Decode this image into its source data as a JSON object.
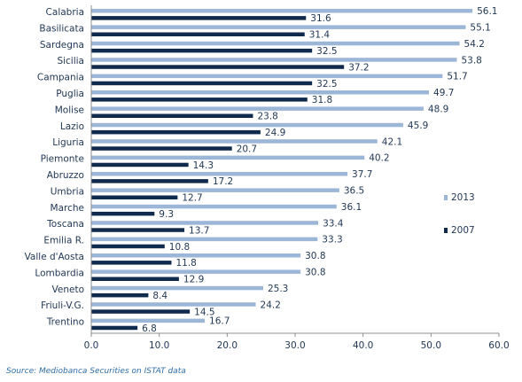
{
  "chart_data": {
    "type": "bar",
    "orientation": "horizontal",
    "categories": [
      "Calabria",
      "Basilicata",
      "Sardegna",
      "Sicilia",
      "Campania",
      "Puglia",
      "Molise",
      "Lazio",
      "Liguria",
      "Piemonte",
      "Abruzzo",
      "Umbria",
      "Marche",
      "Toscana",
      "Emilia R.",
      "Valle d'Aosta",
      "Lombardia",
      "Veneto",
      "Friuli-V.G.",
      "Trentino"
    ],
    "series": [
      {
        "name": "2013",
        "color": "#9cb6d8",
        "values": [
          56.1,
          55.1,
          54.2,
          53.8,
          51.7,
          49.7,
          48.9,
          45.9,
          42.1,
          40.2,
          37.7,
          36.5,
          36.1,
          33.4,
          33.3,
          30.8,
          30.8,
          25.3,
          24.2,
          16.7
        ],
        "labels": [
          "56.1",
          "55.1",
          "54.2",
          "53.8",
          "51.7",
          "49.7",
          "48.9",
          "45.9",
          "42.1",
          "40.2",
          "37.7",
          "36.5",
          "36.1",
          "33.4",
          "33.3",
          "30.8",
          "30.8",
          "25.3",
          "24.2",
          "16.7"
        ]
      },
      {
        "name": "2007",
        "color": "#0f2a4d",
        "values": [
          31.6,
          31.4,
          32.5,
          37.2,
          32.5,
          31.8,
          23.8,
          24.9,
          20.7,
          14.3,
          17.2,
          12.7,
          9.3,
          13.7,
          10.8,
          11.8,
          12.9,
          8.4,
          14.5,
          6.8
        ],
        "labels": [
          "31.6",
          "31.4",
          "32.5",
          "37.2",
          "32.5",
          "31.8",
          "23.8",
          "24.9",
          "20.7",
          "14.3",
          "17.2",
          "12.7",
          "9.3",
          "13.7",
          "10.8",
          "11.8",
          "12.9",
          "8.4",
          "14.5",
          "6.8"
        ]
      }
    ],
    "xlim": [
      0,
      60
    ],
    "xticks": [
      0,
      10,
      20,
      30,
      40,
      50,
      60
    ],
    "xtick_labels": [
      "0.0",
      "10.0",
      "20.0",
      "30.0",
      "40.0",
      "50.0",
      "60.0"
    ],
    "grid": false,
    "legend": "right"
  },
  "source_text": "Source: Mediobanca Securities on ISTAT data"
}
